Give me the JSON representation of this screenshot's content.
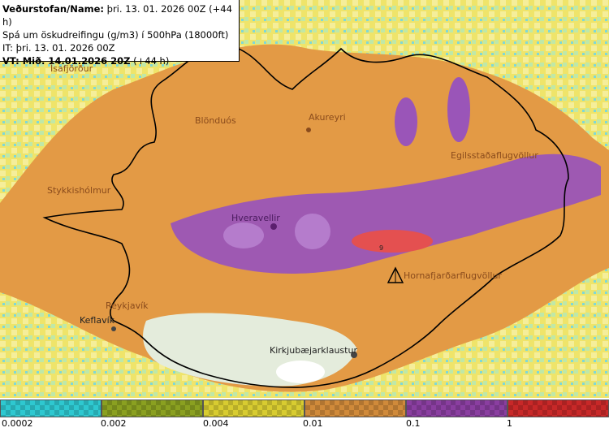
{
  "info": {
    "line1_label": "Veðurstofan/Name:",
    "line1_value": " þri. 13. 01. 2026 00Z (+44 h)",
    "line2": "Spá um öskudreifingu (g/m3) í 500hPa (18000ft)",
    "line3": "IT: þri. 13. 01. 2026 00Z",
    "line4_label": "VT: Mið. 14.01.2026 20Z",
    "line4_value": " (+44 h)"
  },
  "places": {
    "isafjordur": "Ísafjörður",
    "blonduos": "Blönduós",
    "akureyri": "Akureyri",
    "egilsstadir": "Egilsstaðaflugvöllur",
    "stykkisholmur": "Stykkishólmur",
    "hveravellir": "Hveravellir",
    "hornafjordur": "Hornafjarðarflugvöllur",
    "reykjavik": "Reykjavík",
    "keflavik": "Keflavík",
    "kirkjubaejarklaustur": "Kirkjubæjarklaustur",
    "volcano_number": "9"
  },
  "legend": {
    "colors": [
      "#2ec8d0",
      "#8aa020",
      "#d8cc30",
      "#d08a3a",
      "#8a3ea0",
      "#c82828"
    ],
    "ticks": [
      "0.0002",
      "0.002",
      "0.004",
      "0.01",
      "0.1",
      "1"
    ]
  },
  "colors": {
    "ocean_low": "#e8e070",
    "ash_orange": "#e39a45",
    "ash_purple": "#9a55b8",
    "ash_red": "#e45050",
    "land_green": "#dfe9d6"
  }
}
